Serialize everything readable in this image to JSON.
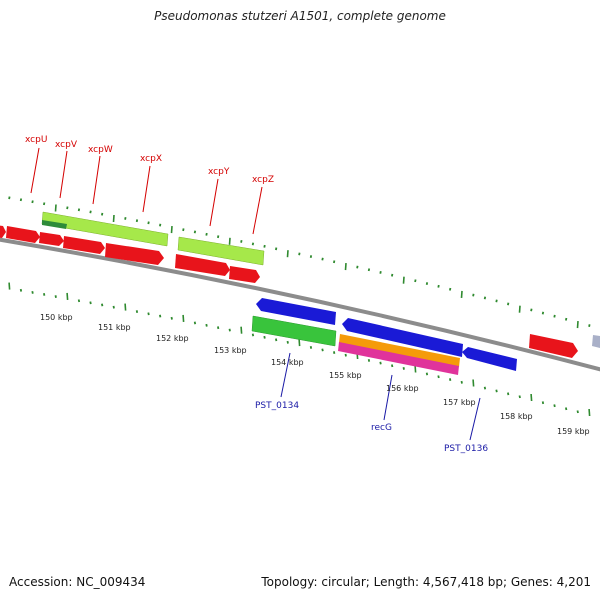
{
  "title": "Pseudomonas stutzeri A1501, complete genome",
  "footer": {
    "accession": "Accession: NC_009434",
    "topology": "Topology: circular; Length: 4,567,418 bp; Genes: 4,201"
  },
  "colors": {
    "forward_cds": "#e8141b",
    "reverse_cds": "#1a1ad6",
    "top_feature": "#a6e84a",
    "top_feature_dark": "#2e8b3a",
    "bottom_feature": "#39c43c",
    "orange_feature": "#f59b0a",
    "pink_feature": "#e0339b",
    "tick": "#2f8a2f",
    "backbone": "#8c8c8c",
    "top_label": "#d40000",
    "bottom_label": "#1a1aa6"
  },
  "kbp_labels": [
    "150 kbp",
    "151 kbp",
    "152 kbp",
    "153 kbp",
    "154 kbp",
    "155 kbp",
    "156 kbp",
    "157 kbp",
    "158 kbp",
    "159 kbp"
  ],
  "top_gene_labels": [
    "xcpU",
    "xcpV",
    "xcpW",
    "xcpX",
    "xcpY",
    "xcpZ"
  ],
  "bottom_gene_labels": [
    "PST_0134",
    "recG",
    "PST_0136"
  ]
}
